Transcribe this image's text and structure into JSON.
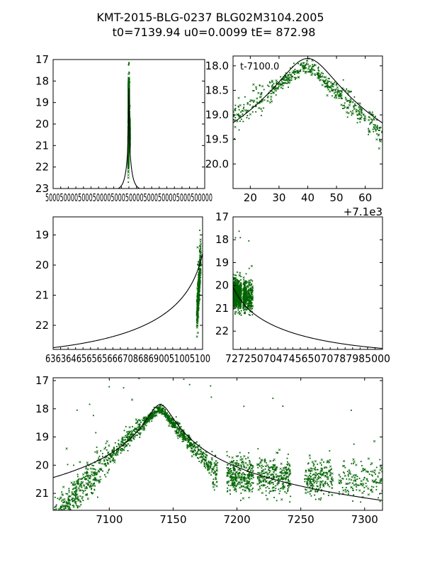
{
  "figure": {
    "title_line1": "KMT-2015-BLG-0237 BLG02M3104.2005",
    "title_line2": "t0=7139.94 u0=0.0099 tE= 872.98"
  },
  "colors": {
    "data": "#006400",
    "model": "#000000",
    "axis": "#000000"
  },
  "model": {
    "t0": 7139.94,
    "u0": 0.0099,
    "tE": 872.98,
    "peak_mag": 17.85,
    "baseline_mag": 23.1
  },
  "chart_data": [
    {
      "id": "full",
      "type": "scatter",
      "xlim": [
        -3500,
        17800
      ],
      "ylim": [
        23,
        17
      ],
      "yticks": [
        17,
        18,
        19,
        20,
        21,
        22,
        23
      ],
      "xtick_labels_text": "5000500005000500005000500005000500005000500000",
      "data_range": [
        6900,
        7320
      ],
      "offset_text": "",
      "annotation": ""
    },
    {
      "id": "zoom-peak",
      "type": "scatter",
      "xlim": [
        14,
        66
      ],
      "ylim": [
        20.5,
        17.8
      ],
      "xticks": [
        20,
        30,
        40,
        50,
        60
      ],
      "yticks": [
        18.0,
        18.5,
        19.0,
        19.5,
        20.0
      ],
      "data_range": [
        14,
        66
      ],
      "offset_text": "+7.1e3",
      "annotation": "t-7100.0"
    },
    {
      "id": "rise",
      "type": "scatter",
      "xlim": [
        6300,
        7100
      ],
      "ylim": [
        22.8,
        18.4
      ],
      "yticks": [
        19,
        20,
        21,
        22
      ],
      "xtick_labels_text": "63636465656566670868690051005100",
      "data_range": [
        7060,
        7100
      ],
      "offset_text": "",
      "annotation": ""
    },
    {
      "id": "decline",
      "type": "scatter",
      "xlim": [
        7200,
        8000
      ],
      "ylim": [
        22.8,
        17
      ],
      "yticks": [
        17,
        18,
        19,
        20,
        21,
        22
      ],
      "xtick_labels_text": "72725070474565070787985000",
      "data_range": [
        7200,
        7330
      ],
      "offset_text": "",
      "annotation": ""
    },
    {
      "id": "bottom",
      "type": "scatter",
      "xlim": [
        7056,
        7314
      ],
      "ylim": [
        21.6,
        16.9
      ],
      "xticks": [
        7100,
        7150,
        7200,
        7250,
        7300
      ],
      "yticks": [
        17,
        18,
        19,
        20,
        21
      ],
      "data_range": [
        7056,
        7314
      ],
      "offset_text": "",
      "annotation": ""
    }
  ]
}
